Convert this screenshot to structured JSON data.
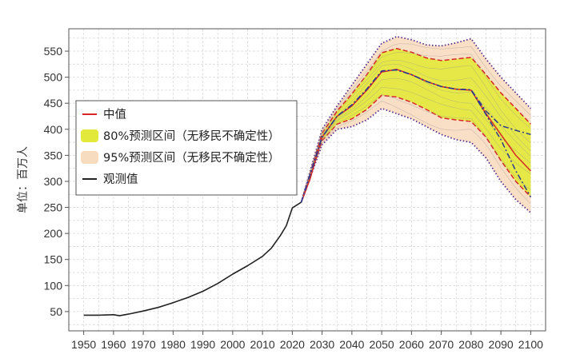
{
  "chart_data": {
    "type": "line",
    "title": "",
    "xlabel": "",
    "ylabel": "单位：百万人",
    "xlim": [
      1945,
      2105
    ],
    "ylim": [
      13,
      593
    ],
    "grid": true,
    "legend_placement": "upper-left",
    "x_ticks": [
      1950,
      1960,
      1970,
      1980,
      1990,
      2000,
      2010,
      2020,
      2030,
      2040,
      2050,
      2060,
      2070,
      2080,
      2090,
      2100
    ],
    "y_ticks": [
      50,
      100,
      150,
      200,
      250,
      300,
      350,
      400,
      450,
      500,
      550
    ],
    "legend": [
      {
        "label": "中值",
        "kind": "line",
        "color": "#d62728"
      },
      {
        "label": "80%预测区间（无移民不确定性）",
        "kind": "band",
        "color": "#e3e93a"
      },
      {
        "label": "95%预测区间（无移民不确定性）",
        "kind": "band",
        "color": "#f8dcc0"
      },
      {
        "label": "观测值",
        "kind": "line",
        "color": "#222222"
      }
    ],
    "series": [
      {
        "name": "观测值",
        "color": "#222222",
        "x": [
          1950,
          1955,
          1960,
          1962,
          1965,
          1970,
          1975,
          1980,
          1985,
          1990,
          1995,
          2000,
          2005,
          2010,
          2013,
          2016,
          2018,
          2020,
          2023
        ],
        "y": [
          43,
          43,
          44,
          42,
          45,
          51,
          58,
          67,
          77,
          89,
          104,
          122,
          138,
          156,
          172,
          196,
          215,
          249,
          260
        ]
      },
      {
        "name": "中值",
        "color": "#d62728",
        "x": [
          2023,
          2026,
          2030,
          2035,
          2040,
          2045,
          2050,
          2055,
          2060,
          2065,
          2070,
          2075,
          2080,
          2085,
          2090,
          2095,
          2100
        ],
        "y": [
          260,
          305,
          385,
          425,
          445,
          475,
          510,
          515,
          505,
          492,
          482,
          477,
          475,
          430,
          390,
          350,
          320
        ]
      },
      {
        "name": "",
        "color": "#2b3a8f",
        "x": [
          2023,
          2030,
          2035,
          2040,
          2045,
          2050,
          2055,
          2060,
          2065,
          2070,
          2075,
          2080,
          2085,
          2090,
          2095,
          2100
        ],
        "y": [
          260,
          385,
          425,
          447,
          477,
          512,
          514,
          505,
          492,
          482,
          477,
          476,
          428,
          380,
          320,
          270
        ]
      },
      {
        "name": "",
        "color": "#2b3a8f",
        "x": [
          2023,
          2030,
          2035,
          2040,
          2045,
          2050,
          2055,
          2060,
          2065,
          2070,
          2075,
          2080,
          2085,
          2090,
          2095,
          2100
        ],
        "y": [
          260,
          385,
          425,
          447,
          477,
          512,
          514,
          505,
          492,
          482,
          477,
          476,
          435,
          407,
          398,
          390
        ]
      }
    ],
    "bands": [
      {
        "level": "95%",
        "color": "#f8dcc0",
        "x": [
          2023,
          2030,
          2035,
          2040,
          2045,
          2050,
          2055,
          2060,
          2065,
          2070,
          2075,
          2080,
          2085,
          2090,
          2095,
          2100
        ],
        "lower": [
          260,
          370,
          400,
          405,
          418,
          440,
          430,
          420,
          405,
          390,
          380,
          375,
          345,
          300,
          265,
          240
        ],
        "upper": [
          260,
          400,
          445,
          485,
          525,
          565,
          578,
          572,
          562,
          560,
          566,
          574,
          535,
          500,
          470,
          440
        ]
      },
      {
        "level": "80%",
        "color": "#e3e93a",
        "x": [
          2023,
          2030,
          2035,
          2040,
          2045,
          2050,
          2055,
          2060,
          2065,
          2070,
          2075,
          2080,
          2085,
          2090,
          2095,
          2100
        ],
        "lower": [
          260,
          378,
          410,
          420,
          438,
          465,
          462,
          452,
          438,
          422,
          418,
          415,
          385,
          340,
          300,
          270
        ],
        "upper": [
          260,
          392,
          435,
          468,
          505,
          547,
          555,
          548,
          537,
          532,
          535,
          538,
          505,
          470,
          440,
          410
        ]
      }
    ]
  }
}
